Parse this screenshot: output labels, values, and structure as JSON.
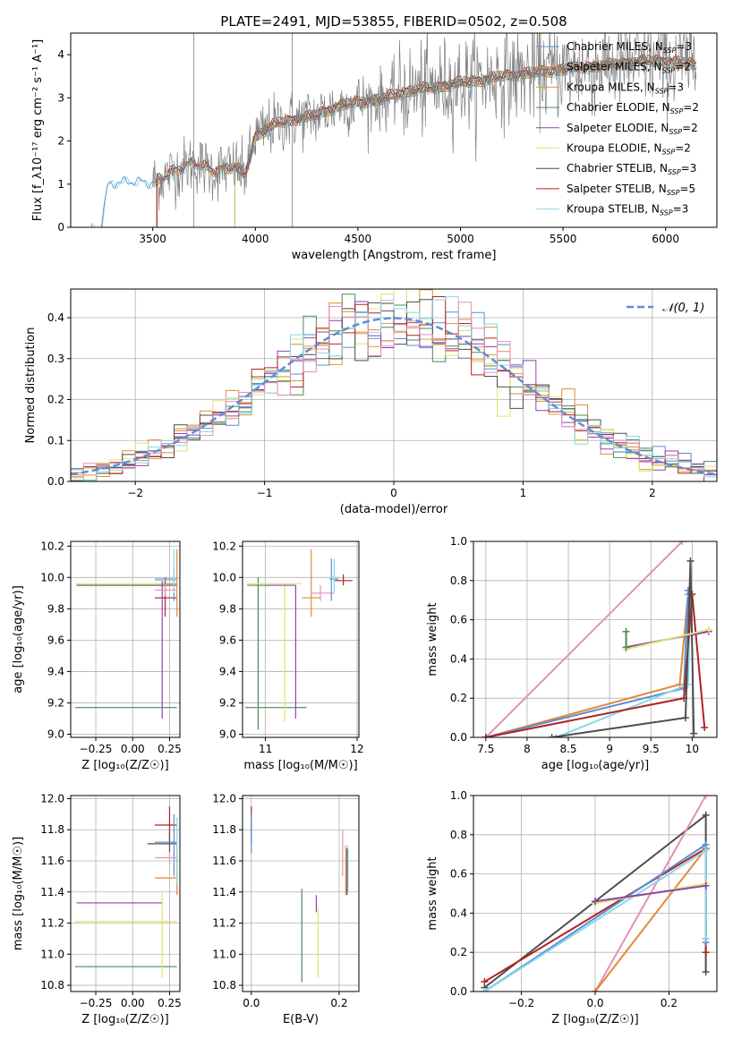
{
  "figure_title": "PLATE=2491, MJD=53855, FIBERID=0502, z=0.508",
  "colors": {
    "chabrier_miles": "#5b8fd6",
    "salpeter_miles": "#e08a3a",
    "kroupa_miles": "#d99a3c",
    "chabrier_elodie": "#4a8a5a",
    "salpeter_elodie": "#8e44ad",
    "kroupa_elodie": "#e3e36a",
    "chabrier_stelib": "#4d4d4d",
    "salpeter_stelib": "#b22222",
    "kroupa_stelib": "#88d8e6",
    "pink": "#e58fb8",
    "data": "#808080",
    "normal": "#5b8fd6",
    "grid": "#b0b0b0"
  },
  "chart_data": [
    {
      "id": "spectrum",
      "type": "line",
      "xlabel": "wavelength [Angstrom, rest frame]",
      "ylabel": "Flux [f_λ10⁻¹⁷ erg cm⁻² s⁻¹ A⁻¹]",
      "xlim": [
        3100,
        6250
      ],
      "ylim": [
        0,
        4.5
      ],
      "xticks": [
        3500,
        4000,
        4500,
        5000,
        5500,
        6000
      ],
      "yticks": [
        0,
        1,
        2,
        3,
        4
      ],
      "legend_position": "top-right",
      "legend": [
        {
          "label": "Chabrier MILES, N_SSP=3",
          "color_key": "chabrier_miles"
        },
        {
          "label": "Salpeter MILES, N_SSP=2",
          "color_key": "salpeter_miles"
        },
        {
          "label": "Kroupa MILES, N_SSP=3",
          "color_key": "kroupa_miles"
        },
        {
          "label": "Chabrier ELODIE, N_SSP=2",
          "color_key": "chabrier_elodie"
        },
        {
          "label": "Salpeter ELODIE, N_SSP=2",
          "color_key": "salpeter_elodie"
        },
        {
          "label": "Kroupa ELODIE, N_SSP=2",
          "color_key": "kroupa_elodie"
        },
        {
          "label": "Chabrier STELIB, N_SSP=3",
          "color_key": "chabrier_stelib"
        },
        {
          "label": "Salpeter STELIB, N_SSP=5",
          "color_key": "salpeter_stelib"
        },
        {
          "label": "Kroupa STELIB, N_SSP=3",
          "color_key": "kroupa_stelib"
        }
      ],
      "continuum": {
        "x": [
          3200,
          3250,
          3280,
          3300,
          3400,
          3500,
          3550,
          3600,
          3700,
          3800,
          3900,
          3950,
          4000,
          4100,
          4200,
          4300,
          4400,
          4500,
          4600,
          4700,
          4800,
          4900,
          5000,
          5100,
          5200,
          5300,
          5400,
          5500,
          5600,
          5700,
          5800,
          5900,
          6000,
          6100,
          6150
        ],
        "y": [
          0,
          0.05,
          1.0,
          1.05,
          1.1,
          1.05,
          1.15,
          1.3,
          1.5,
          1.3,
          1.4,
          1.2,
          2.1,
          2.4,
          2.5,
          2.6,
          2.8,
          2.9,
          2.95,
          3.1,
          3.2,
          3.25,
          3.35,
          3.4,
          3.5,
          3.55,
          3.6,
          3.65,
          3.7,
          3.75,
          3.8,
          3.85,
          3.85,
          3.8,
          3.75
        ]
      },
      "model_start": 3520,
      "elodie_start": 3900,
      "data_range": [
        3500,
        6150
      ],
      "spikes": [
        3700,
        4180
      ]
    },
    {
      "id": "residuals",
      "type": "histogram",
      "xlabel": "(data-model)/error",
      "ylabel": "Normed distribution",
      "xlim": [
        -2.5,
        2.5
      ],
      "ylim": [
        0,
        0.47
      ],
      "xticks": [
        -2,
        -1,
        0,
        1,
        2
      ],
      "yticks": [
        0.0,
        0.1,
        0.2,
        0.3,
        0.4
      ],
      "legend_position": "top-right",
      "legend": [
        {
          "label": "𝒩(0, 1)",
          "color_key": "normal"
        }
      ],
      "bin_width": 0.1,
      "series_keys": [
        "chabrier_miles",
        "salpeter_miles",
        "kroupa_miles",
        "chabrier_elodie",
        "salpeter_elodie",
        "kroupa_elodie",
        "chabrier_stelib",
        "salpeter_stelib",
        "kroupa_stelib",
        "pink"
      ]
    },
    {
      "id": "age_vs_Z",
      "type": "errorbar",
      "xlabel": "Z [log₁₀(Z/Z☉)]",
      "ylabel": "age  [log₁₀(age/yr)]",
      "xlim": [
        -0.42,
        0.32
      ],
      "ylim": [
        8.98,
        10.23
      ],
      "xticks": [
        -0.25,
        0.0,
        0.25
      ],
      "xticklabels": [
        "−0.25",
        "0.00",
        "0.25"
      ],
      "yticks": [
        9.0,
        9.2,
        9.4,
        9.6,
        9.8,
        10.0,
        10.2
      ],
      "points": [
        {
          "c": "kroupa_elodie",
          "x": -0.39,
          "xe": [
            -0.39,
            0.3
          ],
          "y": 9.96,
          "ye": [
            9.96,
            9.96
          ]
        },
        {
          "c": "chabrier_stelib",
          "x": -0.38,
          "xe": [
            -0.38,
            0.3
          ],
          "y": 9.95,
          "ye": [
            9.95,
            9.95
          ]
        },
        {
          "c": "chabrier_elodie",
          "x": -0.39,
          "xe": [
            -0.39,
            0.3
          ],
          "y": 9.17,
          "ye": [
            9.17,
            9.17
          ]
        },
        {
          "c": "salpeter_elodie",
          "x": 0.2,
          "xe": [
            0.2,
            0.2
          ],
          "y": 9.95,
          "ye": [
            9.1,
            9.98
          ]
        },
        {
          "c": "salpeter_stelib",
          "x": 0.22,
          "xe": [
            0.15,
            0.3
          ],
          "y": 9.87,
          "ye": [
            9.75,
            10.0
          ]
        },
        {
          "c": "salpeter_miles",
          "x": 0.3,
          "xe": [
            0.2,
            0.3
          ],
          "y": 9.96,
          "ye": [
            9.75,
            10.18
          ]
        },
        {
          "c": "chabrier_miles",
          "x": 0.28,
          "xe": [
            0.15,
            0.3
          ],
          "y": 9.99,
          "ye": [
            9.85,
            10.05
          ]
        },
        {
          "c": "kroupa_stelib",
          "x": 0.28,
          "xe": [
            0.15,
            0.3
          ],
          "y": 9.98,
          "ye": [
            9.9,
            10.18
          ]
        },
        {
          "c": "pink",
          "x": 0.22,
          "xe": [
            0.15,
            0.3
          ],
          "y": 9.92,
          "ye": [
            9.88,
            9.96
          ]
        }
      ]
    },
    {
      "id": "age_vs_mass",
      "type": "errorbar",
      "xlabel": "mass [log₁₀(M/M☉)]",
      "ylabel": "",
      "xlim": [
        10.75,
        12.02
      ],
      "ylim": [
        8.98,
        10.23
      ],
      "xticks": [
        11,
        12
      ],
      "yticks": [
        9.0,
        9.2,
        9.4,
        9.6,
        9.8,
        10.0,
        10.2
      ],
      "points": [
        {
          "c": "chabrier_elodie",
          "x": 10.92,
          "xe": [
            10.8,
            11.05
          ],
          "y": 9.95,
          "ye": [
            9.03,
            10.0
          ]
        },
        {
          "c": "chabrier_elodie",
          "x": 10.92,
          "xe": [
            10.78,
            11.45
          ],
          "y": 9.17,
          "ye": [
            9.17,
            9.17
          ]
        },
        {
          "c": "kroupa_elodie",
          "x": 11.21,
          "xe": [
            10.8,
            11.4
          ],
          "y": 9.96,
          "ye": [
            9.08,
            9.96
          ]
        },
        {
          "c": "salpeter_elodie",
          "x": 11.33,
          "xe": [
            11.0,
            11.33
          ],
          "y": 9.95,
          "ye": [
            9.1,
            9.95
          ]
        },
        {
          "c": "salpeter_miles",
          "x": 11.5,
          "xe": [
            11.4,
            11.6
          ],
          "y": 9.87,
          "ye": [
            9.75,
            10.18
          ]
        },
        {
          "c": "pink",
          "x": 11.6,
          "xe": [
            11.5,
            11.75
          ],
          "y": 9.9,
          "ye": [
            9.85,
            9.95
          ]
        },
        {
          "c": "salpeter_stelib",
          "x": 11.85,
          "xe": [
            11.75,
            11.95
          ],
          "y": 9.98,
          "ye": [
            9.95,
            10.02
          ]
        },
        {
          "c": "chabrier_miles",
          "x": 11.72,
          "xe": [
            11.7,
            11.8
          ],
          "y": 9.99,
          "ye": [
            9.85,
            10.12
          ]
        },
        {
          "c": "kroupa_stelib",
          "x": 11.75,
          "xe": [
            11.7,
            11.8
          ],
          "y": 10.0,
          "ye": [
            9.9,
            10.12
          ]
        }
      ]
    },
    {
      "id": "weight_vs_age",
      "type": "line",
      "xlabel": "age  [log₁₀(age/yr)]",
      "ylabel": "mass weight",
      "xlim": [
        7.35,
        10.3
      ],
      "ylim": [
        0,
        1.0
      ],
      "xticks": [
        7.5,
        8.0,
        8.5,
        9.0,
        9.5,
        10.0
      ],
      "yticks": [
        0.0,
        0.2,
        0.4,
        0.6,
        0.8,
        1.0
      ],
      "series": [
        {
          "c": "pink",
          "x": [
            7.5,
            9.88
          ],
          "y": [
            0.0,
            1.0
          ]
        },
        {
          "c": "salpeter_miles",
          "x": [
            7.5,
            9.85,
            9.95
          ],
          "y": [
            0.0,
            0.27,
            0.73
          ]
        },
        {
          "c": "chabrier_miles",
          "x": [
            7.5,
            9.9,
            9.95
          ],
          "y": [
            0.0,
            0.25,
            0.75
          ]
        },
        {
          "c": "kroupa_stelib",
          "x": [
            8.35,
            9.95,
            9.98
          ],
          "y": [
            0.0,
            0.27,
            0.72
          ]
        },
        {
          "c": "salpeter_stelib",
          "x": [
            7.5,
            9.9,
            10.0,
            10.15
          ],
          "y": [
            0.0,
            0.2,
            0.73,
            0.05
          ]
        },
        {
          "c": "chabrier_stelib",
          "x": [
            8.3,
            9.92,
            9.98,
            10.02
          ],
          "y": [
            0.0,
            0.1,
            0.9,
            0.02
          ]
        },
        {
          "c": "salpeter_elodie",
          "x": [
            9.2,
            10.2
          ],
          "y": [
            0.46,
            0.54
          ]
        },
        {
          "c": "kroupa_elodie",
          "x": [
            9.2,
            10.2
          ],
          "y": [
            0.45,
            0.55
          ]
        },
        {
          "c": "chabrier_elodie",
          "x": [
            9.2,
            9.2
          ],
          "y": [
            0.46,
            0.54
          ]
        }
      ]
    },
    {
      "id": "mass_vs_Z",
      "type": "errorbar",
      "xlabel": "Z [log₁₀(Z/Z☉)]",
      "ylabel": "mass [log₁₀(M/M☉)]",
      "xlim": [
        -0.42,
        0.32
      ],
      "ylim": [
        10.76,
        12.02
      ],
      "xticks": [
        -0.25,
        0.0,
        0.25
      ],
      "xticklabels": [
        "−0.25",
        "0.00",
        "0.25"
      ],
      "yticks": [
        10.8,
        11.0,
        11.2,
        11.4,
        11.6,
        11.8,
        12.0
      ],
      "points": [
        {
          "c": "chabrier_elodie",
          "x": -0.39,
          "xe": [
            -0.39,
            0.3
          ],
          "y": 10.92,
          "ye": [
            10.92,
            10.92
          ]
        },
        {
          "c": "kroupa_elodie",
          "x": -0.39,
          "xe": [
            -0.39,
            0.3
          ],
          "y": 11.21,
          "ye": [
            11.21,
            11.21
          ]
        },
        {
          "c": "salpeter_elodie",
          "x": -0.38,
          "xe": [
            -0.38,
            0.2
          ],
          "y": 11.33,
          "ye": [
            11.33,
            11.33
          ]
        },
        {
          "c": "kroupa_elodie",
          "x": 0.2,
          "xe": [
            0.2,
            0.2
          ],
          "y": 11.21,
          "ye": [
            10.85,
            11.4
          ]
        },
        {
          "c": "salpeter_stelib",
          "x": 0.25,
          "xe": [
            0.15,
            0.3
          ],
          "y": 11.83,
          "ye": [
            11.72,
            11.95
          ]
        },
        {
          "c": "chabrier_stelib",
          "x": 0.25,
          "xe": [
            0.1,
            0.3
          ],
          "y": 11.71,
          "ye": [
            11.65,
            11.78
          ]
        },
        {
          "c": "chabrier_miles",
          "x": 0.28,
          "xe": [
            0.15,
            0.3
          ],
          "y": 11.72,
          "ye": [
            11.5,
            11.9
          ]
        },
        {
          "c": "salpeter_miles",
          "x": 0.3,
          "xe": [
            0.15,
            0.3
          ],
          "y": 11.49,
          "ye": [
            11.38,
            11.7
          ]
        },
        {
          "c": "pink",
          "x": 0.25,
          "xe": [
            0.15,
            0.3
          ],
          "y": 11.62,
          "ye": [
            11.58,
            11.66
          ]
        },
        {
          "c": "kroupa_stelib",
          "x": 0.3,
          "xe": [
            0.25,
            0.3
          ],
          "y": 11.6,
          "ye": [
            11.45,
            11.88
          ]
        }
      ]
    },
    {
      "id": "mass_vs_ebv",
      "type": "errorbar",
      "xlabel": "E(B-V)",
      "ylabel": "",
      "xlim": [
        -0.02,
        0.245
      ],
      "ylim": [
        10.76,
        12.02
      ],
      "xticks": [
        0.0,
        0.2
      ],
      "xticklabels": [
        "0.0",
        "0.2"
      ],
      "yticks": [
        10.8,
        11.0,
        11.2,
        11.4,
        11.6,
        11.8,
        12.0
      ],
      "points": [
        {
          "c": "salpeter_stelib",
          "x": 0.0,
          "xe": [
            0.0,
            0.0
          ],
          "y": 11.85,
          "ye": [
            11.72,
            11.95
          ]
        },
        {
          "c": "chabrier_miles",
          "x": 0.0,
          "xe": [
            0.0,
            0.0
          ],
          "y": 11.75,
          "ye": [
            11.65,
            11.9
          ]
        },
        {
          "c": "chabrier_elodie",
          "x": 0.115,
          "xe": [
            0.115,
            0.115
          ],
          "y": 11.0,
          "ye": [
            10.82,
            11.42
          ]
        },
        {
          "c": "salpeter_elodie",
          "x": 0.148,
          "xe": [
            0.148,
            0.148
          ],
          "y": 11.33,
          "ye": [
            11.27,
            11.38
          ]
        },
        {
          "c": "kroupa_elodie",
          "x": 0.152,
          "xe": [
            0.152,
            0.152
          ],
          "y": 11.1,
          "ye": [
            10.85,
            11.3
          ]
        },
        {
          "c": "pink",
          "x": 0.208,
          "xe": [
            0.208,
            0.208
          ],
          "y": 11.65,
          "ye": [
            11.5,
            11.8
          ]
        },
        {
          "c": "salpeter_miles",
          "x": 0.215,
          "xe": [
            0.215,
            0.215
          ],
          "y": 11.5,
          "ye": [
            11.38,
            11.7
          ]
        },
        {
          "c": "kroupa_stelib",
          "x": 0.22,
          "xe": [
            0.22,
            0.22
          ],
          "y": 11.55,
          "ye": [
            11.4,
            11.7
          ]
        },
        {
          "c": "chabrier_stelib",
          "x": 0.218,
          "xe": [
            0.218,
            0.218
          ],
          "y": 11.5,
          "ye": [
            11.38,
            11.68
          ]
        }
      ]
    },
    {
      "id": "weight_vs_Z",
      "type": "line",
      "xlabel": "Z [log₁₀(Z/Z☉)]",
      "ylabel": "mass weight",
      "xlim": [
        -0.33,
        0.33
      ],
      "ylim": [
        0,
        1.0
      ],
      "xticks": [
        -0.2,
        0.0,
        0.2
      ],
      "xticklabels": [
        "−0.2",
        "0.0",
        "0.2"
      ],
      "yticks": [
        0.0,
        0.2,
        0.4,
        0.6,
        0.8,
        1.0
      ],
      "series": [
        {
          "c": "chabrier_stelib",
          "x": [
            -0.3,
            0.0,
            0.3,
            0.3
          ],
          "y": [
            0.02,
            0.46,
            0.9,
            0.1
          ]
        },
        {
          "c": "salpeter_stelib",
          "x": [
            -0.3,
            0.3,
            0.3
          ],
          "y": [
            0.05,
            0.73,
            0.2
          ]
        },
        {
          "c": "pink",
          "x": [
            0.0,
            0.3
          ],
          "y": [
            0.0,
            1.0
          ]
        },
        {
          "c": "salpeter_miles",
          "x": [
            0.0,
            0.3,
            0.3
          ],
          "y": [
            0.0,
            0.73,
            0.27
          ]
        },
        {
          "c": "chabrier_miles",
          "x": [
            -0.3,
            0.3,
            0.3
          ],
          "y": [
            0.0,
            0.75,
            0.25
          ]
        },
        {
          "c": "kroupa_stelib",
          "x": [
            -0.3,
            0.3,
            0.3
          ],
          "y": [
            0.0,
            0.72,
            0.27
          ]
        },
        {
          "c": "kroupa_elodie",
          "x": [
            0.0,
            0.3
          ],
          "y": [
            0.45,
            0.55
          ]
        },
        {
          "c": "salpeter_elodie",
          "x": [
            0.0,
            0.3
          ],
          "y": [
            0.46,
            0.54
          ]
        }
      ]
    }
  ]
}
